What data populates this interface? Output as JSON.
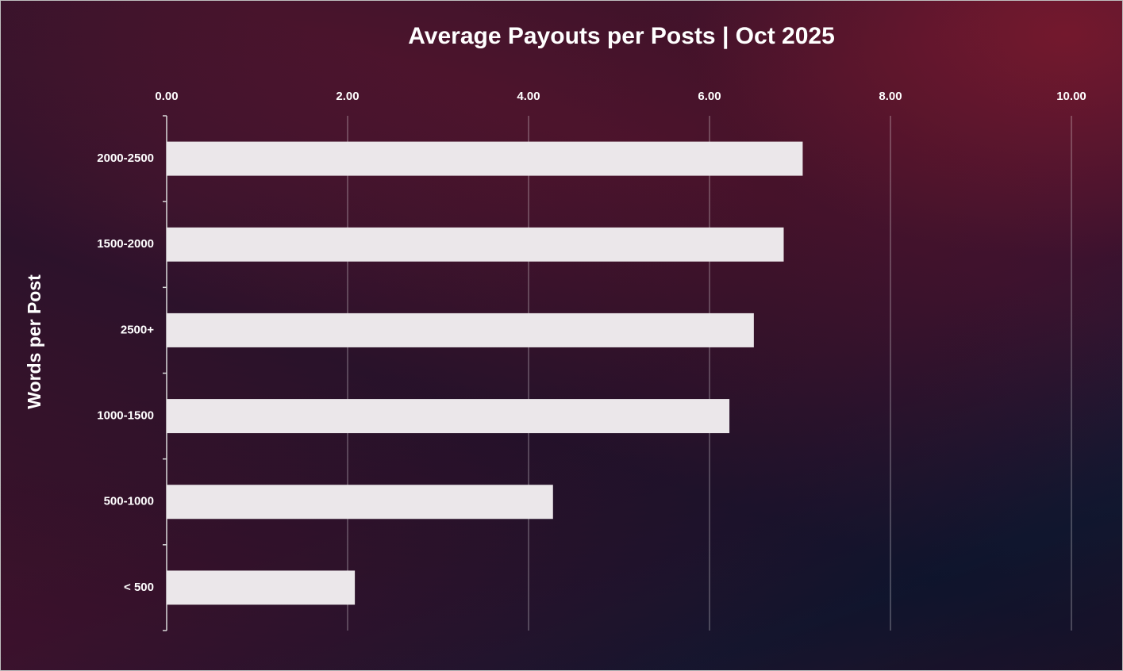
{
  "chart_data": {
    "type": "bar",
    "orientation": "horizontal",
    "title": "Average Payouts per Posts | Oct 2025",
    "y_label": "Words per Post",
    "categories": [
      "2000-2500",
      "1500-2000",
      "2500+",
      "1000-1500",
      "500-1000",
      "< 500"
    ],
    "values": [
      7.03,
      6.82,
      6.49,
      6.22,
      4.27,
      2.08
    ],
    "color": "#ebe7ea",
    "xlim": [
      0,
      10
    ],
    "xticks": [
      {
        "value": 0,
        "label": "0.00"
      },
      {
        "value": 2,
        "label": "2.00"
      },
      {
        "value": 4,
        "label": "4.00"
      },
      {
        "value": 6,
        "label": "6.00"
      },
      {
        "value": 8,
        "label": "8.00"
      },
      {
        "value": 10,
        "label": "10.00"
      }
    ],
    "grid": true
  }
}
